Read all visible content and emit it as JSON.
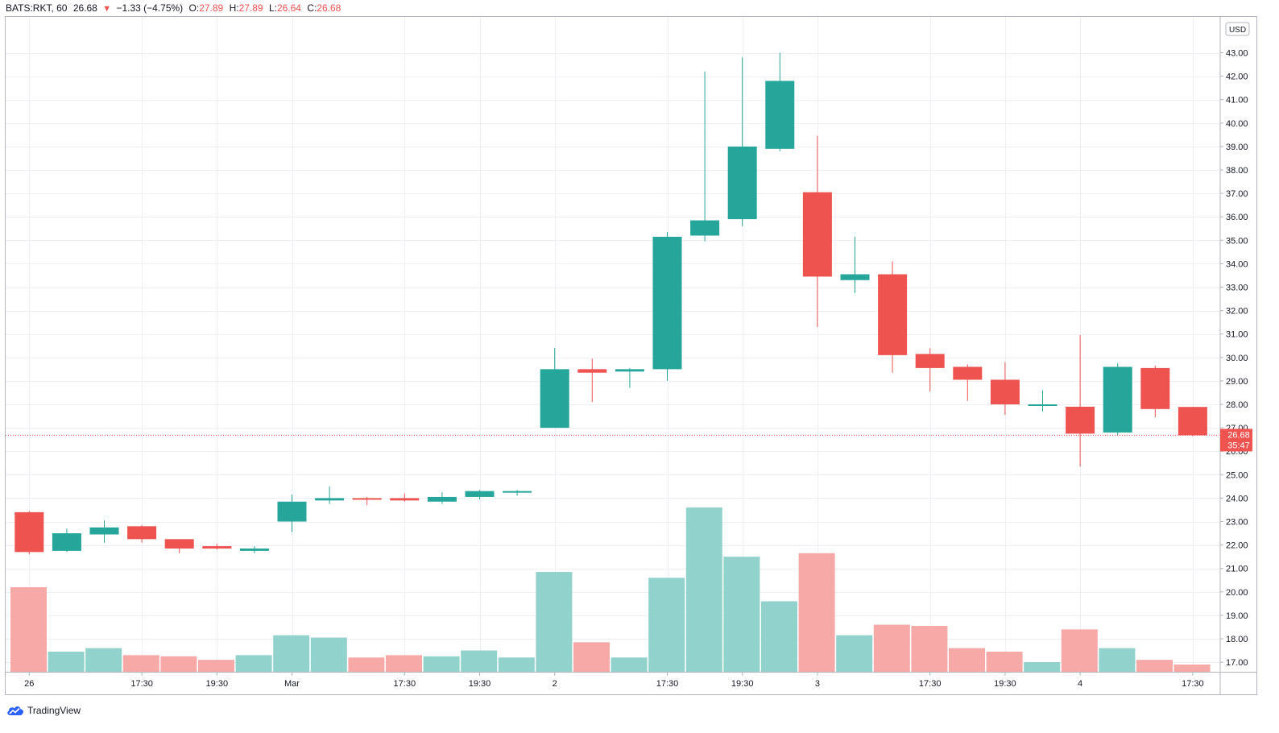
{
  "header": {
    "symbol": "BATS:RKT, 60",
    "last": "26.68",
    "arrow": "▼",
    "change": "−1.33 (−4.75%)",
    "o_label": "O:",
    "o_value": "27.89",
    "h_label": "H:",
    "h_value": "27.89",
    "l_label": "L:",
    "l_value": "26.64",
    "c_label": "C:",
    "c_value": "26.68"
  },
  "price_axis": {
    "currency": "USD",
    "last_price_label": "26.68",
    "countdown": "35:47"
  },
  "footer": {
    "brand": "TradingView"
  },
  "colors": {
    "up": "#26a69a",
    "down": "#ef5350",
    "up_volume": "#92d2cc",
    "down_volume": "#f7a9a7",
    "grid": "#edf1f6",
    "axis_text": "#131722"
  },
  "chart_data": {
    "type": "candlestick",
    "title": "",
    "xlabel": "",
    "ylabel": "",
    "ylim": [
      16.6,
      43.7
    ],
    "y_ticks": [
      17,
      18,
      19,
      20,
      21,
      22,
      23,
      24,
      25,
      26,
      27,
      28,
      29,
      30,
      31,
      32,
      33,
      34,
      35,
      36,
      37,
      38,
      39,
      40,
      41,
      42,
      43
    ],
    "x_ticks": [
      {
        "bar": 0.5,
        "label": "26"
      },
      {
        "bar": 3.5,
        "label": "17:30"
      },
      {
        "bar": 5.5,
        "label": "19:30"
      },
      {
        "bar": 7.5,
        "label": "Mar"
      },
      {
        "bar": 10.5,
        "label": "17:30"
      },
      {
        "bar": 12.5,
        "label": "19:30"
      },
      {
        "bar": 14.5,
        "label": "2"
      },
      {
        "bar": 17.5,
        "label": "17:30"
      },
      {
        "bar": 19.5,
        "label": "19:30"
      },
      {
        "bar": 21.5,
        "label": "3"
      },
      {
        "bar": 24.5,
        "label": "17:30"
      },
      {
        "bar": 26.5,
        "label": "19:30"
      },
      {
        "bar": 28.5,
        "label": "4"
      },
      {
        "bar": 31.5,
        "label": "17:30"
      }
    ],
    "candles": [
      {
        "o": 23.4,
        "h": 23.45,
        "l": 21.6,
        "c": 21.7
      },
      {
        "o": 21.75,
        "h": 22.7,
        "l": 21.7,
        "c": 22.5
      },
      {
        "o": 22.45,
        "h": 23.05,
        "l": 22.1,
        "c": 22.75
      },
      {
        "o": 22.8,
        "h": 22.85,
        "l": 22.1,
        "c": 22.25
      },
      {
        "o": 22.25,
        "h": 22.25,
        "l": 21.65,
        "c": 21.85
      },
      {
        "o": 21.95,
        "h": 22.05,
        "l": 21.8,
        "c": 21.85
      },
      {
        "o": 21.75,
        "h": 21.95,
        "l": 21.65,
        "c": 21.85
      },
      {
        "o": 23.0,
        "h": 24.15,
        "l": 22.55,
        "c": 23.85
      },
      {
        "o": 23.9,
        "h": 24.5,
        "l": 23.75,
        "c": 24.0
      },
      {
        "o": 24.0,
        "h": 24.05,
        "l": 23.7,
        "c": 23.95
      },
      {
        "o": 24.0,
        "h": 24.2,
        "l": 23.85,
        "c": 23.9
      },
      {
        "o": 23.85,
        "h": 24.25,
        "l": 23.75,
        "c": 24.05
      },
      {
        "o": 24.05,
        "h": 24.35,
        "l": 23.95,
        "c": 24.3
      },
      {
        "o": 24.25,
        "h": 24.35,
        "l": 24.1,
        "c": 24.3
      },
      {
        "o": 27.0,
        "h": 30.4,
        "l": 27.0,
        "c": 29.5
      },
      {
        "o": 29.5,
        "h": 29.95,
        "l": 28.1,
        "c": 29.35
      },
      {
        "o": 29.4,
        "h": 29.55,
        "l": 28.7,
        "c": 29.5
      },
      {
        "o": 29.5,
        "h": 35.35,
        "l": 29.0,
        "c": 35.15
      },
      {
        "o": 35.2,
        "h": 42.2,
        "l": 34.95,
        "c": 35.85
      },
      {
        "o": 35.9,
        "h": 42.8,
        "l": 35.6,
        "c": 39.0
      },
      {
        "o": 38.9,
        "h": 43.0,
        "l": 38.8,
        "c": 41.8
      },
      {
        "o": 37.05,
        "h": 39.45,
        "l": 31.3,
        "c": 33.45
      },
      {
        "o": 33.3,
        "h": 35.15,
        "l": 32.75,
        "c": 33.55
      },
      {
        "o": 33.55,
        "h": 34.1,
        "l": 29.35,
        "c": 30.1
      },
      {
        "o": 30.15,
        "h": 30.4,
        "l": 28.55,
        "c": 29.55
      },
      {
        "o": 29.6,
        "h": 29.7,
        "l": 28.15,
        "c": 29.05
      },
      {
        "o": 29.05,
        "h": 29.8,
        "l": 27.55,
        "c": 28.0
      },
      {
        "o": 27.95,
        "h": 28.6,
        "l": 27.7,
        "c": 28.0
      },
      {
        "o": 27.9,
        "h": 30.95,
        "l": 25.35,
        "c": 26.75
      },
      {
        "o": 26.8,
        "h": 29.75,
        "l": 26.7,
        "c": 29.6
      },
      {
        "o": 29.55,
        "h": 29.65,
        "l": 27.45,
        "c": 27.8
      },
      {
        "o": 27.89,
        "h": 27.89,
        "l": 26.64,
        "c": 26.68
      }
    ],
    "volume": [
      {
        "v": 20.2,
        "dir": "down"
      },
      {
        "v": 17.45,
        "dir": "up"
      },
      {
        "v": 17.6,
        "dir": "up"
      },
      {
        "v": 17.3,
        "dir": "down"
      },
      {
        "v": 17.25,
        "dir": "down"
      },
      {
        "v": 17.1,
        "dir": "down"
      },
      {
        "v": 17.3,
        "dir": "up"
      },
      {
        "v": 18.15,
        "dir": "up"
      },
      {
        "v": 18.05,
        "dir": "up"
      },
      {
        "v": 17.2,
        "dir": "down"
      },
      {
        "v": 17.3,
        "dir": "down"
      },
      {
        "v": 17.25,
        "dir": "up"
      },
      {
        "v": 17.5,
        "dir": "up"
      },
      {
        "v": 17.2,
        "dir": "up"
      },
      {
        "v": 20.85,
        "dir": "up"
      },
      {
        "v": 17.85,
        "dir": "down"
      },
      {
        "v": 17.2,
        "dir": "up"
      },
      {
        "v": 20.6,
        "dir": "up"
      },
      {
        "v": 23.6,
        "dir": "up"
      },
      {
        "v": 21.5,
        "dir": "up"
      },
      {
        "v": 19.6,
        "dir": "up"
      },
      {
        "v": 21.65,
        "dir": "down"
      },
      {
        "v": 18.15,
        "dir": "up"
      },
      {
        "v": 18.6,
        "dir": "down"
      },
      {
        "v": 18.55,
        "dir": "down"
      },
      {
        "v": 17.6,
        "dir": "down"
      },
      {
        "v": 17.45,
        "dir": "down"
      },
      {
        "v": 17.0,
        "dir": "up"
      },
      {
        "v": 18.4,
        "dir": "down"
      },
      {
        "v": 17.6,
        "dir": "up"
      },
      {
        "v": 17.1,
        "dir": "down"
      },
      {
        "v": 16.9,
        "dir": "down"
      }
    ],
    "last_price": 26.68
  }
}
